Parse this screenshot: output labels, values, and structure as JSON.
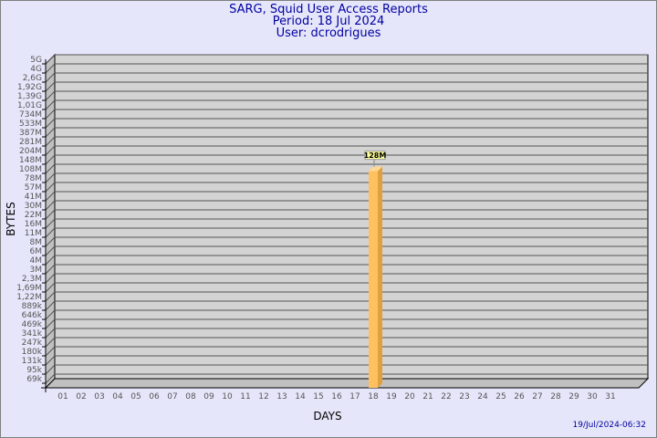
{
  "header": {
    "title": "SARG, Squid User Access Reports",
    "period": "Period: 18 Jul 2024",
    "user": "User: dcrodrigues"
  },
  "footer": {
    "timestamp": "19/Jul/2024-06:32"
  },
  "colors": {
    "background": "#e6e6fa",
    "plot_back": "#d3d3d3",
    "bar": "#ffc060",
    "title": "#0000a0"
  },
  "chart_data": {
    "type": "bar",
    "xlabel": "DAYS",
    "ylabel": "BYTES",
    "y_scale": "log",
    "grid": true,
    "y_ticks": [
      "5G",
      "4G",
      "2,6G",
      "1,92G",
      "1,39G",
      "1,01G",
      "734M",
      "533M",
      "387M",
      "281M",
      "204M",
      "148M",
      "108M",
      "78M",
      "57M",
      "41M",
      "30M",
      "22M",
      "16M",
      "11M",
      "8M",
      "6M",
      "4M",
      "3M",
      "2,3M",
      "1,69M",
      "1,22M",
      "889k",
      "646k",
      "469k",
      "341k",
      "247k",
      "180k",
      "131k",
      "95k",
      "69k"
    ],
    "categories": [
      "01",
      "02",
      "03",
      "04",
      "05",
      "06",
      "07",
      "08",
      "09",
      "10",
      "11",
      "12",
      "13",
      "14",
      "15",
      "16",
      "17",
      "18",
      "19",
      "20",
      "21",
      "22",
      "23",
      "24",
      "25",
      "26",
      "27",
      "28",
      "29",
      "30",
      "31"
    ],
    "bars": [
      {
        "day": "18",
        "value_bytes": 128000000,
        "label": "128M"
      }
    ]
  }
}
